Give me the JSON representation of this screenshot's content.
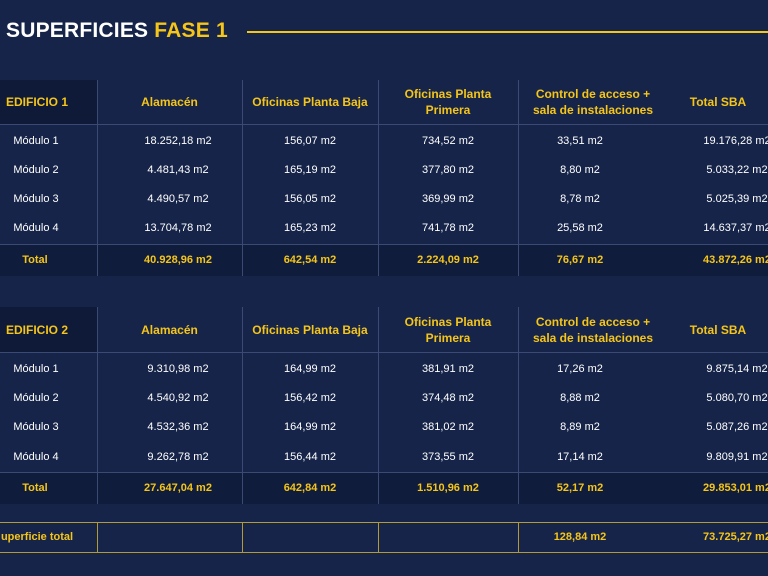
{
  "title": {
    "main": "SUPERFICIES",
    "accent": "FASE 1"
  },
  "columns": [
    "Alamacén",
    "Oficinas Planta Baja",
    "Oficinas Planta Primera",
    "Control de acceso + sala de instalaciones",
    "Total SBA"
  ],
  "edificio1": {
    "name": "EDIFICIO 1",
    "rows": [
      {
        "label": "Módulo 1",
        "values": [
          "18.252,18 m2",
          "156,07 m2",
          "734,52 m2",
          "33,51 m2",
          "19.176,28 m2"
        ]
      },
      {
        "label": "Módulo 2",
        "values": [
          "4.481,43 m2",
          "165,19 m2",
          "377,80 m2",
          "8,80 m2",
          "5.033,22 m2"
        ]
      },
      {
        "label": "Módulo 3",
        "values": [
          "4.490,57 m2",
          "156,05 m2",
          "369,99 m2",
          "8,78 m2",
          "5.025,39 m2"
        ]
      },
      {
        "label": "Módulo 4",
        "values": [
          "13.704,78 m2",
          "165,23 m2",
          "741,78 m2",
          "25,58 m2",
          "14.637,37 m2"
        ]
      }
    ],
    "total": {
      "label": "Total",
      "values": [
        "40.928,96 m2",
        "642,54 m2",
        "2.224,09 m2",
        "76,67 m2",
        "43.872,26 m2"
      ]
    }
  },
  "edificio2": {
    "name": "EDIFICIO 2",
    "rows": [
      {
        "label": "Módulo 1",
        "values": [
          "9.310,98 m2",
          "164,99 m2",
          "381,91 m2",
          "17,26 m2",
          "9.875,14 m2"
        ]
      },
      {
        "label": "Módulo 2",
        "values": [
          "4.540,92 m2",
          "156,42 m2",
          "374,48 m2",
          "8,88 m2",
          "5.080,70 m2"
        ]
      },
      {
        "label": "Módulo 3",
        "values": [
          "4.532,36 m2",
          "164,99 m2",
          "381,02 m2",
          "8,89 m2",
          "5.087,26 m2"
        ]
      },
      {
        "label": "Módulo 4",
        "values": [
          "9.262,78 m2",
          "156,44 m2",
          "373,55 m2",
          "17,14 m2",
          "9.809,91 m2"
        ]
      }
    ],
    "total": {
      "label": "Total",
      "values": [
        "27.647,04 m2",
        "642,84 m2",
        "1.510,96 m2",
        "52,17 m2",
        "29.853,01 m2"
      ]
    }
  },
  "superficie_total": {
    "label": "uperficie total",
    "values": [
      "",
      "",
      "",
      "128,84 m2",
      "73.725,27 m2"
    ]
  },
  "colors": {
    "background": "#162449",
    "accent": "#f5c518"
  }
}
